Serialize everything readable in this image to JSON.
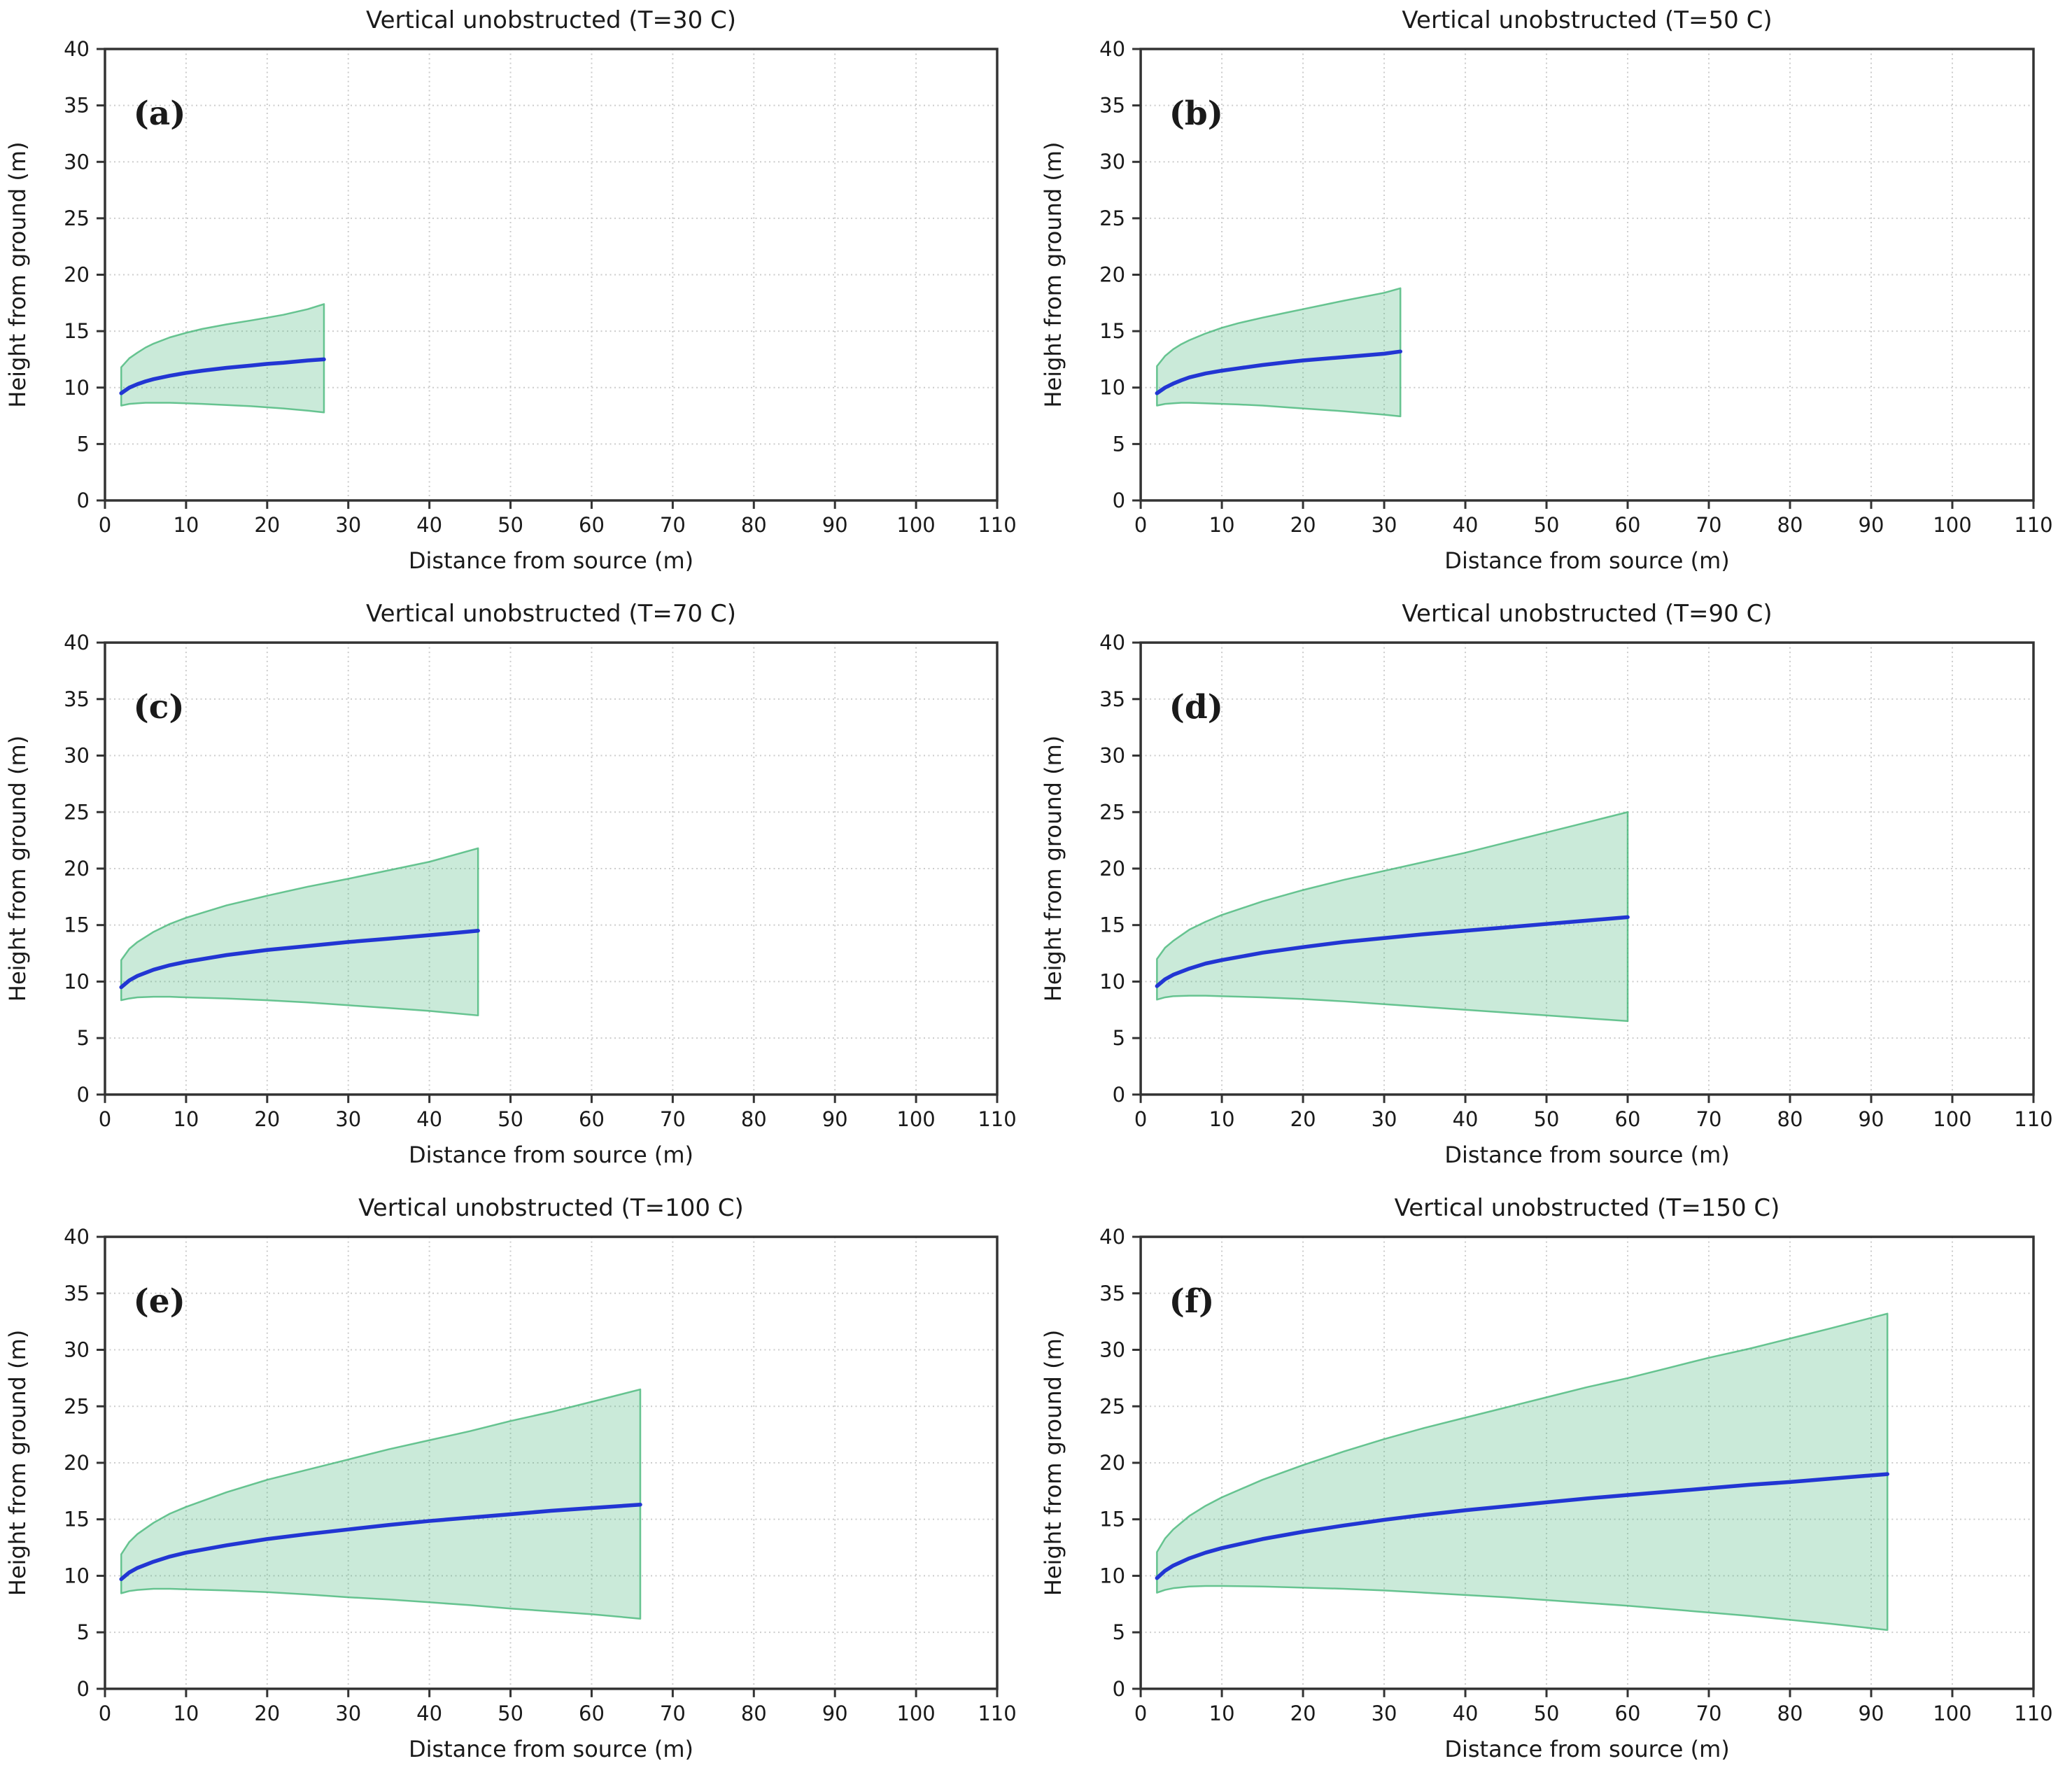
{
  "figure": {
    "xlabel": "Distance from source (m)",
    "ylabel": "Height from ground (m)",
    "xlim": [
      0,
      110
    ],
    "ylim": [
      0,
      40
    ],
    "x_ticks": [
      0,
      10,
      20,
      30,
      40,
      50,
      60,
      70,
      80,
      90,
      100,
      110
    ],
    "y_ticks": [
      0,
      5,
      10,
      15,
      20,
      25,
      30,
      35,
      40
    ],
    "grid": true,
    "colors": {
      "median_line": "#2236d3",
      "band_color": "#3cb371",
      "band_fill_opacity": 0.27,
      "band_edge_opacity": 0.75,
      "grid_line": "#cccccc",
      "spine": "#333333",
      "text": "#1a1a1a"
    }
  },
  "chart_data": [
    {
      "id": "a",
      "type": "line",
      "panel_label": "(a)",
      "title": "Vertical unobstructed (T=30 C)",
      "xlabel": "Distance from source (m)",
      "ylabel": "Height from ground (m)",
      "xlim": [
        0,
        110
      ],
      "ylim": [
        0,
        40
      ],
      "grid": true,
      "x": [
        2,
        3,
        4,
        5,
        6,
        8,
        10,
        12,
        15,
        18,
        20,
        22,
        25,
        27
      ],
      "series": [
        {
          "name": "median",
          "values": [
            9.5,
            10.0,
            10.3,
            10.55,
            10.75,
            11.05,
            11.3,
            11.5,
            11.75,
            11.95,
            12.1,
            12.2,
            12.4,
            12.5
          ]
        },
        {
          "name": "band_upper",
          "values": [
            11.8,
            12.6,
            13.1,
            13.55,
            13.9,
            14.45,
            14.85,
            15.2,
            15.6,
            15.95,
            16.2,
            16.45,
            16.95,
            17.4
          ]
        },
        {
          "name": "band_lower",
          "values": [
            8.4,
            8.55,
            8.6,
            8.65,
            8.65,
            8.65,
            8.6,
            8.55,
            8.45,
            8.35,
            8.25,
            8.15,
            7.95,
            7.8
          ]
        }
      ]
    },
    {
      "id": "b",
      "type": "line",
      "panel_label": "(b)",
      "title": "Vertical unobstructed (T=50 C)",
      "xlabel": "Distance from source (m)",
      "ylabel": "Height from ground (m)",
      "xlim": [
        0,
        110
      ],
      "ylim": [
        0,
        40
      ],
      "grid": true,
      "x": [
        2,
        3,
        4,
        5,
        6,
        8,
        10,
        12,
        15,
        18,
        20,
        25,
        30,
        32
      ],
      "series": [
        {
          "name": "median",
          "values": [
            9.5,
            10.0,
            10.35,
            10.65,
            10.9,
            11.25,
            11.5,
            11.7,
            12.0,
            12.25,
            12.4,
            12.7,
            13.0,
            13.2
          ]
        },
        {
          "name": "band_upper",
          "values": [
            11.9,
            12.8,
            13.4,
            13.85,
            14.2,
            14.8,
            15.3,
            15.7,
            16.2,
            16.65,
            16.95,
            17.7,
            18.4,
            18.8
          ]
        },
        {
          "name": "band_lower",
          "values": [
            8.4,
            8.55,
            8.6,
            8.65,
            8.65,
            8.6,
            8.55,
            8.5,
            8.4,
            8.25,
            8.15,
            7.9,
            7.6,
            7.45
          ]
        }
      ]
    },
    {
      "id": "c",
      "type": "line",
      "panel_label": "(c)",
      "title": "Vertical unobstructed (T=70 C)",
      "xlabel": "Distance from source (m)",
      "ylabel": "Height from ground (m)",
      "xlim": [
        0,
        110
      ],
      "ylim": [
        0,
        40
      ],
      "grid": true,
      "x": [
        2,
        3,
        4,
        6,
        8,
        10,
        15,
        20,
        25,
        30,
        35,
        40,
        46
      ],
      "series": [
        {
          "name": "median",
          "values": [
            9.5,
            10.1,
            10.5,
            11.05,
            11.45,
            11.75,
            12.35,
            12.8,
            13.15,
            13.5,
            13.8,
            14.1,
            14.5
          ]
        },
        {
          "name": "band_upper",
          "values": [
            11.9,
            12.9,
            13.5,
            14.4,
            15.1,
            15.65,
            16.75,
            17.6,
            18.4,
            19.1,
            19.85,
            20.6,
            21.8
          ]
        },
        {
          "name": "band_lower",
          "values": [
            8.35,
            8.5,
            8.6,
            8.65,
            8.65,
            8.6,
            8.5,
            8.35,
            8.15,
            7.9,
            7.65,
            7.4,
            7.0
          ]
        }
      ]
    },
    {
      "id": "d",
      "type": "line",
      "panel_label": "(d)",
      "title": "Vertical unobstructed (T=90 C)",
      "xlabel": "Distance from source (m)",
      "ylabel": "Height from ground (m)",
      "xlim": [
        0,
        110
      ],
      "ylim": [
        0,
        40
      ],
      "grid": true,
      "x": [
        2,
        3,
        4,
        6,
        8,
        10,
        15,
        20,
        25,
        30,
        35,
        40,
        45,
        50,
        55,
        60
      ],
      "series": [
        {
          "name": "median",
          "values": [
            9.6,
            10.2,
            10.6,
            11.15,
            11.6,
            11.9,
            12.55,
            13.05,
            13.5,
            13.85,
            14.2,
            14.5,
            14.8,
            15.1,
            15.4,
            15.7
          ]
        },
        {
          "name": "band_upper",
          "values": [
            12.0,
            13.0,
            13.6,
            14.6,
            15.3,
            15.9,
            17.1,
            18.1,
            19.0,
            19.8,
            20.6,
            21.4,
            22.3,
            23.2,
            24.1,
            25.0
          ]
        },
        {
          "name": "band_lower",
          "values": [
            8.4,
            8.6,
            8.7,
            8.75,
            8.75,
            8.7,
            8.6,
            8.45,
            8.25,
            8.0,
            7.75,
            7.5,
            7.25,
            7.0,
            6.75,
            6.5
          ]
        }
      ]
    },
    {
      "id": "e",
      "type": "line",
      "panel_label": "(e)",
      "title": "Vertical unobstructed (T=100 C)",
      "xlabel": "Distance from source (m)",
      "ylabel": "Height from ground (m)",
      "xlim": [
        0,
        110
      ],
      "ylim": [
        0,
        40
      ],
      "grid": true,
      "x": [
        2,
        3,
        4,
        6,
        8,
        10,
        15,
        20,
        25,
        30,
        35,
        40,
        45,
        50,
        55,
        60,
        66
      ],
      "series": [
        {
          "name": "median",
          "values": [
            9.7,
            10.3,
            10.7,
            11.25,
            11.7,
            12.05,
            12.7,
            13.25,
            13.7,
            14.1,
            14.5,
            14.85,
            15.15,
            15.45,
            15.75,
            16.0,
            16.3
          ]
        },
        {
          "name": "band_upper",
          "values": [
            11.9,
            13.0,
            13.7,
            14.7,
            15.5,
            16.1,
            17.4,
            18.5,
            19.4,
            20.3,
            21.2,
            22.0,
            22.8,
            23.7,
            24.5,
            25.4,
            26.5
          ]
        },
        {
          "name": "band_lower",
          "values": [
            8.45,
            8.65,
            8.75,
            8.85,
            8.85,
            8.8,
            8.7,
            8.55,
            8.35,
            8.1,
            7.9,
            7.65,
            7.4,
            7.1,
            6.85,
            6.6,
            6.2
          ]
        }
      ]
    },
    {
      "id": "f",
      "type": "line",
      "panel_label": "(f)",
      "title": "Vertical unobstructed (T=150 C)",
      "xlabel": "Distance from source (m)",
      "ylabel": "Height from ground (m)",
      "xlim": [
        0,
        110
      ],
      "ylim": [
        0,
        40
      ],
      "grid": true,
      "x": [
        2,
        3,
        4,
        6,
        8,
        10,
        15,
        20,
        25,
        30,
        35,
        40,
        45,
        50,
        55,
        60,
        65,
        70,
        75,
        80,
        85,
        92
      ],
      "series": [
        {
          "name": "median",
          "values": [
            9.8,
            10.45,
            10.9,
            11.55,
            12.05,
            12.45,
            13.25,
            13.9,
            14.45,
            14.95,
            15.4,
            15.8,
            16.15,
            16.5,
            16.85,
            17.15,
            17.45,
            17.75,
            18.05,
            18.3,
            18.6,
            19.0
          ]
        },
        {
          "name": "band_upper",
          "values": [
            12.1,
            13.3,
            14.1,
            15.3,
            16.2,
            16.95,
            18.5,
            19.8,
            21.0,
            22.1,
            23.1,
            24.0,
            24.9,
            25.8,
            26.7,
            27.5,
            28.4,
            29.3,
            30.1,
            31.0,
            31.9,
            33.2
          ]
        },
        {
          "name": "band_lower",
          "values": [
            8.5,
            8.75,
            8.9,
            9.05,
            9.1,
            9.1,
            9.05,
            8.95,
            8.85,
            8.7,
            8.5,
            8.3,
            8.1,
            7.85,
            7.6,
            7.35,
            7.05,
            6.75,
            6.45,
            6.1,
            5.75,
            5.2
          ]
        }
      ]
    }
  ]
}
